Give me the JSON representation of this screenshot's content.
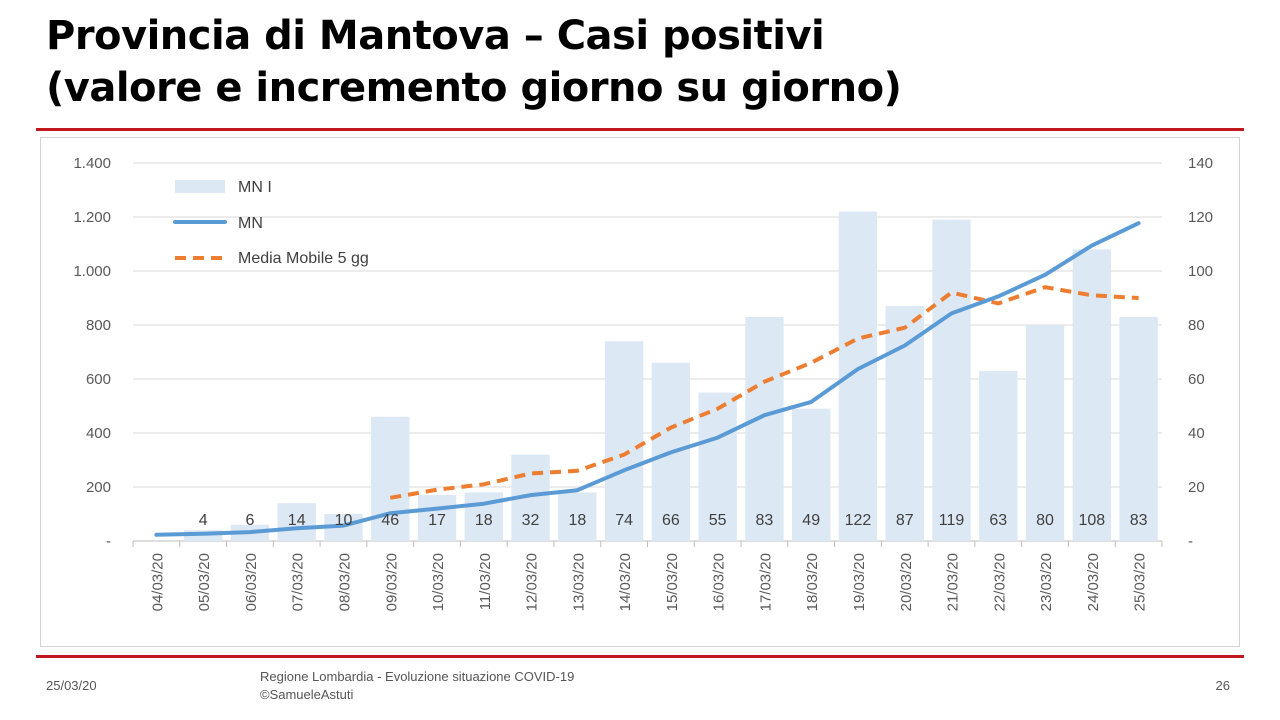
{
  "slide": {
    "title_line1": "Provincia di Mantova – Casi positivi",
    "title_line2": "(valore e incremento giorno su giorno)",
    "footer_date": "25/03/20",
    "footer_source_line1": "Regione Lombardia - Evoluzione situazione COVID-19",
    "footer_source_line2": "©SamueleAstuti",
    "page_number": "26"
  },
  "colors": {
    "bars": "#dde8f5",
    "line": "#5b9bd5",
    "moving_average": "#ed7d31",
    "rule": "#c0191f",
    "grid": "#d9d9d9"
  },
  "chart_data": {
    "type": "bar+line",
    "categories": [
      "04/03/20",
      "05/03/20",
      "06/03/20",
      "07/03/20",
      "08/03/20",
      "09/03/20",
      "10/03/20",
      "11/03/20",
      "12/03/20",
      "13/03/20",
      "14/03/20",
      "15/03/20",
      "16/03/20",
      "17/03/20",
      "18/03/20",
      "19/03/20",
      "20/03/20",
      "21/03/20",
      "22/03/20",
      "23/03/20",
      "24/03/20",
      "25/03/20"
    ],
    "left_axis": {
      "ylim": [
        0,
        1400
      ],
      "ticks": [
        "-",
        "200",
        "400",
        "600",
        "800",
        "1.000",
        "1.200",
        "1.400"
      ],
      "tick_values": [
        0,
        200,
        400,
        600,
        800,
        1000,
        1200,
        1400
      ]
    },
    "right_axis": {
      "ylim": [
        0,
        140
      ],
      "ticks": [
        "-",
        "20",
        "40",
        "60",
        "80",
        "100",
        "120",
        "140"
      ],
      "tick_values": [
        0,
        20,
        40,
        60,
        80,
        100,
        120,
        140
      ]
    },
    "grid": true,
    "legend_position": "top-left",
    "series": [
      {
        "name": "MN I",
        "type": "bar",
        "axis": "right",
        "values": [
          null,
          4,
          6,
          14,
          10,
          46,
          17,
          18,
          32,
          18,
          74,
          66,
          55,
          83,
          49,
          122,
          87,
          119,
          63,
          80,
          108,
          83
        ],
        "labels": [
          "",
          "4",
          "6",
          "14",
          "10",
          "46",
          "17",
          "18",
          "32",
          "18",
          "74",
          "66",
          "55",
          "83",
          "49",
          "122",
          "87",
          "119",
          "63",
          "80",
          "108",
          "83"
        ]
      },
      {
        "name": "MN",
        "type": "line",
        "axis": "left",
        "values": [
          23,
          27,
          33,
          47,
          57,
          103,
          120,
          138,
          170,
          188,
          262,
          328,
          383,
          466,
          515,
          637,
          724,
          843,
          906,
          986,
          1094,
          1177
        ]
      },
      {
        "name": "Media Mobile 5 gg",
        "type": "line-dashed",
        "axis": "right",
        "values": [
          null,
          null,
          null,
          null,
          null,
          16,
          19,
          21,
          25,
          26,
          32,
          42,
          49,
          59,
          66,
          75,
          79,
          92,
          88,
          94,
          91,
          90
        ]
      }
    ]
  }
}
